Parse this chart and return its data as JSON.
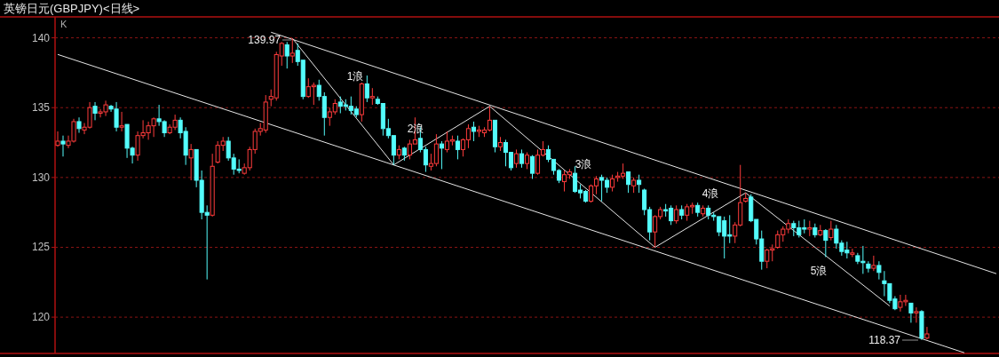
{
  "chart_data": {
    "type": "candlestick",
    "title": "英镑日元(GBPJPY)<日线>",
    "categories": [
      null,
      null,
      null,
      null,
      null,
      null,
      null,
      null,
      null,
      null,
      null,
      null,
      null,
      null,
      null,
      null,
      null,
      null,
      null,
      null,
      null,
      null,
      null,
      null,
      null,
      null,
      null,
      null,
      null,
      null,
      null,
      null,
      null,
      null,
      null,
      null,
      null,
      null,
      null,
      null,
      null,
      null,
      null,
      null,
      null,
      null,
      null,
      null,
      null,
      null,
      null,
      null,
      null,
      null,
      null,
      null,
      null,
      null,
      null,
      null,
      null,
      null,
      null,
      null,
      null,
      null,
      null,
      null,
      null,
      null,
      null,
      null,
      null,
      null,
      null,
      null,
      null,
      null,
      null,
      null,
      null,
      null,
      null,
      null,
      null,
      null,
      null,
      null,
      null,
      null,
      null,
      null,
      null,
      null,
      null,
      null,
      null,
      null,
      null,
      null,
      null,
      null,
      null,
      null,
      null,
      null,
      null,
      null,
      null,
      null,
      null,
      null,
      null,
      null,
      null,
      null,
      null,
      null,
      null,
      null,
      null,
      null,
      null,
      null,
      null,
      null,
      null,
      null,
      null,
      null,
      null,
      null,
      null,
      null,
      null,
      null,
      null,
      null,
      null,
      null,
      null,
      null,
      null,
      null,
      null,
      null,
      null,
      null,
      null,
      null,
      null,
      null,
      null,
      null,
      null,
      null,
      null,
      null,
      null,
      null,
      null,
      null,
      null,
      null,
      null,
      null,
      null,
      null,
      null,
      null,
      null,
      null,
      null,
      null,
      null,
      null,
      null
    ],
    "ohlc": [
      [
        132.3,
        133.3,
        132.2,
        132.6
      ],
      [
        132.6,
        133.0,
        131.5,
        132.4
      ],
      [
        132.3,
        133.0,
        132.1,
        132.6
      ],
      [
        132.6,
        134.2,
        132.5,
        134.0
      ],
      [
        134.0,
        134.3,
        133.2,
        133.5
      ],
      [
        133.4,
        133.9,
        133.1,
        133.6
      ],
      [
        133.6,
        135.4,
        133.5,
        135.0
      ],
      [
        135.1,
        135.4,
        134.1,
        134.6
      ],
      [
        134.6,
        134.9,
        134.3,
        134.7
      ],
      [
        134.7,
        135.5,
        134.4,
        135.2
      ],
      [
        135.1,
        135.2,
        134.7,
        134.9
      ],
      [
        134.9,
        135.4,
        133.3,
        133.6
      ],
      [
        133.6,
        134.7,
        133.3,
        133.7
      ],
      [
        133.8,
        133.8,
        131.4,
        132.1
      ],
      [
        132.1,
        132.2,
        131.0,
        131.6
      ],
      [
        131.6,
        133.3,
        131.2,
        133.0
      ],
      [
        133.0,
        134.1,
        132.8,
        133.2
      ],
      [
        133.2,
        134.0,
        132.7,
        133.7
      ],
      [
        133.7,
        134.3,
        132.9,
        134.2
      ],
      [
        134.2,
        135.2,
        133.7,
        134.0
      ],
      [
        134.0,
        134.1,
        132.9,
        133.2
      ],
      [
        133.2,
        133.8,
        133.1,
        133.6
      ],
      [
        133.6,
        134.5,
        133.4,
        134.1
      ],
      [
        134.1,
        134.3,
        132.8,
        133.2
      ],
      [
        133.3,
        133.6,
        130.9,
        131.6
      ],
      [
        131.4,
        132.4,
        129.8,
        132.0
      ],
      [
        132.0,
        132.0,
        129.3,
        129.8
      ],
      [
        129.8,
        130.5,
        127.0,
        127.5
      ],
      [
        127.5,
        128.0,
        122.7,
        127.3
      ],
      [
        127.3,
        131.7,
        127.2,
        130.8
      ],
      [
        131.1,
        132.6,
        131.0,
        132.3
      ],
      [
        132.3,
        132.9,
        131.9,
        132.6
      ],
      [
        132.6,
        132.9,
        131.2,
        131.4
      ],
      [
        131.4,
        131.7,
        130.2,
        130.6
      ],
      [
        130.6,
        131.3,
        130.3,
        130.5
      ],
      [
        130.3,
        131.0,
        130.2,
        130.7
      ],
      [
        130.7,
        132.2,
        130.5,
        132.0
      ],
      [
        132.0,
        133.5,
        131.7,
        133.3
      ],
      [
        133.3,
        133.9,
        133.0,
        133.5
      ],
      [
        133.4,
        135.9,
        133.2,
        135.4
      ],
      [
        135.6,
        136.3,
        135.1,
        135.8
      ],
      [
        135.7,
        139.0,
        135.5,
        138.8
      ],
      [
        138.7,
        139.7,
        138.0,
        139.6
      ],
      [
        139.5,
        139.7,
        137.8,
        138.7
      ],
      [
        138.7,
        139.97,
        138.2,
        138.9
      ],
      [
        139.1,
        139.6,
        138.0,
        138.3
      ],
      [
        138.4,
        138.4,
        135.6,
        135.8
      ],
      [
        135.8,
        137.1,
        135.7,
        136.5
      ],
      [
        136.5,
        136.8,
        135.2,
        136.6
      ],
      [
        136.6,
        137.0,
        135.5,
        135.8
      ],
      [
        135.8,
        136.1,
        133.0,
        134.3
      ],
      [
        134.3,
        135.0,
        133.7,
        134.7
      ],
      [
        134.7,
        135.6,
        134.5,
        135.3
      ],
      [
        135.4,
        135.8,
        134.6,
        135.1
      ],
      [
        135.2,
        135.6,
        134.8,
        135.1
      ],
      [
        135.1,
        135.8,
        134.5,
        134.8
      ],
      [
        134.9,
        135.1,
        134.3,
        134.5
      ],
      [
        134.5,
        136.8,
        134.0,
        136.7
      ],
      [
        136.7,
        137.3,
        135.4,
        135.7
      ],
      [
        135.7,
        136.4,
        135.2,
        135.8
      ],
      [
        135.6,
        135.8,
        135.2,
        135.3
      ],
      [
        135.3,
        135.3,
        133.0,
        133.5
      ],
      [
        133.5,
        134.2,
        132.8,
        133.0
      ],
      [
        133.0,
        133.0,
        130.9,
        131.6
      ],
      [
        131.6,
        132.3,
        131.3,
        132.0
      ],
      [
        132.1,
        132.2,
        131.2,
        131.6
      ],
      [
        131.6,
        132.7,
        131.3,
        132.4
      ],
      [
        132.4,
        134.3,
        132.4,
        132.7
      ],
      [
        132.8,
        133.6,
        131.8,
        132.0
      ],
      [
        132.0,
        132.2,
        130.4,
        130.9
      ],
      [
        130.8,
        131.7,
        130.5,
        131.0
      ],
      [
        131.0,
        133.1,
        130.8,
        132.4
      ],
      [
        132.4,
        132.6,
        130.6,
        132.1
      ],
      [
        132.0,
        133.3,
        131.8,
        132.6
      ],
      [
        132.6,
        133.0,
        132.3,
        132.7
      ],
      [
        132.6,
        133.0,
        131.3,
        132.0
      ],
      [
        132.0,
        132.8,
        131.5,
        132.7
      ],
      [
        132.7,
        133.8,
        132.1,
        133.5
      ],
      [
        133.6,
        134.0,
        132.6,
        133.3
      ],
      [
        133.3,
        133.7,
        132.9,
        133.4
      ],
      [
        133.2,
        133.6,
        132.9,
        133.4
      ],
      [
        133.4,
        135.1,
        133.3,
        134.1
      ],
      [
        134.1,
        134.1,
        131.8,
        132.2
      ],
      [
        132.2,
        132.9,
        131.9,
        132.5
      ],
      [
        132.5,
        132.7,
        130.8,
        131.8
      ],
      [
        131.8,
        131.8,
        130.5,
        130.7
      ],
      [
        131.0,
        132.0,
        130.7,
        131.7
      ],
      [
        131.7,
        132.0,
        130.7,
        131.0
      ],
      [
        131.0,
        131.8,
        130.6,
        131.6
      ],
      [
        131.5,
        131.6,
        129.9,
        130.3
      ],
      [
        130.3,
        132.0,
        130.2,
        131.6
      ],
      [
        131.6,
        132.6,
        131.5,
        132.0
      ],
      [
        132.0,
        132.3,
        131.1,
        131.3
      ],
      [
        131.3,
        131.3,
        130.2,
        130.5
      ],
      [
        130.5,
        130.6,
        129.6,
        129.8
      ],
      [
        129.7,
        130.5,
        129.0,
        130.2
      ],
      [
        130.2,
        130.6,
        129.9,
        130.4
      ],
      [
        130.3,
        130.8,
        128.9,
        129.0
      ],
      [
        129.1,
        129.5,
        128.5,
        128.9
      ],
      [
        129.0,
        129.1,
        128.2,
        128.3
      ],
      [
        128.3,
        129.5,
        128.2,
        129.4
      ],
      [
        129.4,
        130.1,
        128.8,
        129.9
      ],
      [
        130.0,
        130.2,
        128.3,
        129.8
      ],
      [
        129.8,
        130.0,
        128.9,
        129.3
      ],
      [
        129.3,
        130.2,
        129.0,
        129.9
      ],
      [
        130.0,
        130.4,
        129.7,
        130.1
      ],
      [
        130.1,
        131.0,
        129.9,
        130.3
      ],
      [
        130.4,
        130.4,
        128.9,
        129.5
      ],
      [
        129.4,
        130.0,
        128.9,
        129.8
      ],
      [
        129.8,
        130.2,
        128.9,
        129.5
      ],
      [
        129.1,
        129.2,
        127.3,
        127.7
      ],
      [
        127.7,
        127.9,
        125.5,
        126.1
      ],
      [
        126.1,
        127.3,
        125.0,
        127.2
      ],
      [
        127.2,
        127.9,
        127.0,
        127.7
      ],
      [
        127.7,
        128.1,
        127.2,
        127.6
      ],
      [
        127.8,
        128.0,
        126.6,
        126.9
      ],
      [
        126.9,
        128.0,
        126.7,
        127.7
      ],
      [
        127.7,
        128.0,
        127.0,
        127.3
      ],
      [
        127.3,
        128.1,
        126.9,
        127.9
      ],
      [
        127.9,
        128.2,
        127.4,
        128.0
      ],
      [
        128.0,
        128.2,
        127.2,
        127.5
      ],
      [
        127.4,
        128.0,
        127.2,
        127.8
      ],
      [
        127.8,
        128.0,
        127.0,
        127.3
      ],
      [
        127.3,
        127.5,
        126.9,
        127.2
      ],
      [
        127.2,
        127.2,
        125.8,
        126.1
      ],
      [
        126.9,
        127.2,
        124.2,
        125.8
      ],
      [
        125.9,
        127.3,
        125.3,
        125.8
      ],
      [
        125.8,
        126.8,
        125.3,
        126.6
      ],
      [
        126.6,
        130.9,
        126.5,
        128.2
      ],
      [
        128.3,
        128.9,
        128.2,
        128.5
      ],
      [
        128.6,
        128.8,
        126.8,
        126.9
      ],
      [
        127.0,
        127.0,
        125.2,
        125.6
      ],
      [
        125.6,
        126.2,
        123.4,
        124.0
      ],
      [
        124.0,
        124.9,
        123.5,
        124.8
      ],
      [
        124.8,
        125.2,
        124.0,
        124.9
      ],
      [
        125.0,
        126.2,
        124.9,
        125.9
      ],
      [
        125.9,
        126.5,
        125.4,
        126.3
      ],
      [
        126.3,
        127.0,
        126.0,
        126.7
      ],
      [
        126.7,
        126.9,
        125.8,
        126.4
      ],
      [
        126.4,
        126.9,
        125.7,
        125.9
      ],
      [
        126.4,
        127.0,
        126.0,
        126.3
      ],
      [
        126.3,
        126.9,
        125.8,
        126.4
      ],
      [
        126.4,
        126.7,
        125.7,
        125.9
      ],
      [
        125.9,
        126.6,
        125.8,
        126.2
      ],
      [
        126.2,
        126.3,
        124.3,
        125.5
      ],
      [
        125.7,
        126.9,
        125.5,
        126.3
      ],
      [
        126.3,
        126.6,
        124.9,
        125.3
      ],
      [
        125.3,
        125.5,
        124.4,
        124.7
      ],
      [
        124.8,
        125.4,
        124.2,
        124.6
      ],
      [
        124.5,
        124.9,
        124.3,
        124.6
      ],
      [
        124.4,
        124.6,
        123.8,
        124.0
      ],
      [
        124.0,
        125.1,
        123.1,
        123.9
      ],
      [
        123.8,
        124.0,
        123.2,
        123.5
      ],
      [
        123.5,
        124.4,
        123.3,
        123.7
      ],
      [
        123.7,
        124.0,
        122.7,
        123.2
      ],
      [
        122.6,
        123.3,
        121.5,
        122.4
      ],
      [
        122.4,
        122.4,
        121.0,
        121.2
      ],
      [
        121.3,
        121.5,
        120.5,
        120.6
      ],
      [
        120.7,
        121.6,
        120.4,
        121.1
      ],
      [
        121.1,
        121.6,
        120.8,
        121.2
      ],
      [
        121.0,
        121.0,
        119.6,
        120.3
      ],
      [
        120.3,
        120.7,
        119.6,
        120.4
      ],
      [
        120.4,
        120.5,
        118.37,
        118.5
      ],
      [
        118.5,
        119.3,
        118.4,
        118.8
      ],
      null,
      null,
      null,
      null,
      null,
      null,
      null,
      null,
      null,
      null,
      null,
      null,
      null
    ],
    "colors": [
      "#ff3c3c",
      "#54fcfc",
      "#ff3c3c",
      "#ff3c3c",
      "#54fcfc",
      "#ff3c3c",
      "#ff3c3c",
      "#54fcfc",
      "#ff3c3c",
      "#ff3c3c",
      "#54fcfc",
      "#54fcfc",
      "#ff3c3c",
      "#54fcfc",
      "#54fcfc",
      "#ff3c3c",
      "#ff3c3c",
      "#ff3c3c",
      "#ff3c3c",
      "#54fcfc",
      "#54fcfc",
      "#ff3c3c",
      "#ff3c3c",
      "#54fcfc",
      "#54fcfc",
      "#ff3c3c",
      "#54fcfc",
      "#54fcfc",
      "#54fcfc",
      "#ff3c3c",
      "#ff3c3c",
      "#ff3c3c",
      "#54fcfc",
      "#54fcfc",
      "#54fcfc",
      "#ff3c3c",
      "#ff3c3c",
      "#ff3c3c",
      "#ff3c3c",
      "#ff3c3c",
      "#ff3c3c",
      "#ff3c3c",
      "#ff3c3c",
      "#54fcfc",
      "#ff3c3c",
      "#54fcfc",
      "#54fcfc",
      "#ff3c3c",
      "#ff3c3c",
      "#54fcfc",
      "#54fcfc",
      "#ff3c3c",
      "#ff3c3c",
      "#54fcfc",
      "#54fcfc",
      "#54fcfc",
      "#54fcfc",
      "#ff3c3c",
      "#54fcfc",
      "#ff3c3c",
      "#54fcfc",
      "#54fcfc",
      "#54fcfc",
      "#54fcfc",
      "#ff3c3c",
      "#54fcfc",
      "#ff3c3c",
      "#ff3c3c",
      "#54fcfc",
      "#54fcfc",
      "#ff3c3c",
      "#ff3c3c",
      "#54fcfc",
      "#ff3c3c",
      "#ff3c3c",
      "#54fcfc",
      "#ff3c3c",
      "#ff3c3c",
      "#54fcfc",
      "#ff3c3c",
      "#ff3c3c",
      "#ff3c3c",
      "#54fcfc",
      "#ff3c3c",
      "#54fcfc",
      "#54fcfc",
      "#ff3c3c",
      "#54fcfc",
      "#ff3c3c",
      "#54fcfc",
      "#ff3c3c",
      "#ff3c3c",
      "#54fcfc",
      "#54fcfc",
      "#54fcfc",
      "#ff3c3c",
      "#ff3c3c",
      "#54fcfc",
      "#54fcfc",
      "#54fcfc",
      "#ff3c3c",
      "#ff3c3c",
      "#54fcfc",
      "#54fcfc",
      "#ff3c3c",
      "#ff3c3c",
      "#ff3c3c",
      "#54fcfc",
      "#ff3c3c",
      "#54fcfc",
      "#54fcfc",
      "#54fcfc",
      "#ff3c3c",
      "#ff3c3c",
      "#54fcfc",
      "#54fcfc",
      "#ff3c3c",
      "#54fcfc",
      "#ff3c3c",
      "#ff3c3c",
      "#54fcfc",
      "#ff3c3c",
      "#54fcfc",
      "#54fcfc",
      "#54fcfc",
      "#54fcfc",
      "#54fcfc",
      "#ff3c3c",
      "#ff3c3c",
      "#ff3c3c",
      "#54fcfc",
      "#54fcfc",
      "#54fcfc",
      "#ff3c3c",
      "#ff3c3c",
      "#ff3c3c",
      "#ff3c3c",
      "#ff3c3c",
      "#54fcfc",
      "#54fcfc",
      "#54fcfc",
      "#ff3c3c",
      "#54fcfc",
      "#ff3c3c",
      "#54fcfc",
      "#ff3c3c",
      "#54fcfc",
      "#54fcfc",
      "#54fcfc",
      "#ff3c3c",
      "#54fcfc",
      "#54fcfc",
      "#54fcfc",
      "#ff3c3c",
      "#54fcfc",
      "#54fcfc",
      "#54fcfc",
      "#54fcfc",
      "#ff3c3c",
      "#ff3c3c",
      "#54fcfc",
      "#ff3c3c",
      "#54fcfc",
      "#ff3c3c",
      null,
      null,
      null,
      null,
      null,
      null,
      null,
      null,
      null,
      null,
      null,
      null,
      null
    ],
    "series": [
      {
        "type": "line",
        "color": "#e6e6e6",
        "values": [
          null,
          null,
          null,
          null,
          null,
          null,
          null,
          null,
          null,
          null,
          null,
          null,
          null,
          null,
          null,
          null,
          null,
          null,
          null,
          null,
          null,
          null,
          null,
          null,
          null,
          null,
          null,
          null,
          null,
          null,
          null,
          null,
          null,
          null,
          null,
          null,
          null,
          null,
          null,
          null,
          140.4,
          null,
          null,
          null,
          null,
          null,
          null,
          null,
          null,
          null,
          null,
          null,
          null,
          null,
          null,
          null,
          null,
          null,
          null,
          null,
          null,
          null,
          null,
          null,
          null,
          null,
          null,
          null,
          null,
          null,
          null,
          null,
          null,
          null,
          null,
          null,
          null,
          null,
          null,
          null,
          null,
          null,
          null,
          null,
          null,
          null,
          null,
          null,
          null,
          null,
          null,
          null,
          null,
          null,
          null,
          null,
          null,
          null,
          null,
          null,
          null,
          null,
          null,
          null,
          null,
          null,
          null,
          null,
          null,
          null,
          null,
          null,
          null,
          null,
          null,
          null,
          null,
          null,
          null,
          null,
          null,
          null,
          null,
          null,
          null,
          null,
          null,
          null,
          null,
          null,
          null,
          null,
          null,
          null,
          null,
          null,
          null,
          null,
          null,
          null,
          null,
          null,
          null,
          null,
          null,
          null,
          null,
          null,
          null,
          null,
          null,
          null,
          null,
          null,
          null,
          null,
          null,
          null,
          null,
          null,
          null,
          null,
          null,
          null,
          null,
          null,
          null,
          null,
          null,
          null,
          null,
          null,
          null,
          null,
          null,
          null,
          123.11
        ]
      },
      {
        "type": "line",
        "color": "#e6e6e6",
        "values": [
          138.81,
          null,
          null,
          null,
          null,
          null,
          null,
          null,
          null,
          null,
          null,
          null,
          null,
          null,
          null,
          null,
          null,
          null,
          null,
          null,
          null,
          null,
          null,
          null,
          null,
          null,
          null,
          null,
          null,
          null,
          null,
          null,
          null,
          null,
          null,
          null,
          null,
          null,
          null,
          null,
          null,
          null,
          null,
          null,
          null,
          null,
          null,
          null,
          null,
          null,
          null,
          null,
          null,
          null,
          null,
          null,
          null,
          null,
          null,
          null,
          null,
          null,
          null,
          null,
          null,
          null,
          null,
          null,
          null,
          null,
          null,
          null,
          null,
          null,
          null,
          null,
          null,
          null,
          null,
          null,
          null,
          null,
          null,
          null,
          null,
          null,
          null,
          null,
          null,
          null,
          null,
          null,
          null,
          null,
          null,
          null,
          null,
          null,
          null,
          null,
          null,
          null,
          null,
          null,
          null,
          null,
          null,
          null,
          null,
          null,
          null,
          null,
          null,
          null,
          null,
          null,
          null,
          null,
          null,
          null,
          null,
          null,
          null,
          null,
          null,
          null,
          null,
          null,
          null,
          null,
          null,
          null,
          null,
          null,
          null,
          null,
          null,
          null,
          null,
          null,
          null,
          null,
          null,
          null,
          null,
          null,
          null,
          null,
          null,
          null,
          null,
          null,
          null,
          null,
          null,
          null,
          null,
          null,
          null,
          null,
          null,
          null,
          null,
          null,
          null,
          null,
          null,
          null,
          null,
          null,
          117.45,
          null,
          null,
          null,
          null,
          null,
          null
        ]
      },
      {
        "type": "line",
        "color": "#e6e6e6",
        "values": [
          null,
          null,
          null,
          null,
          null,
          null,
          null,
          null,
          null,
          null,
          null,
          null,
          null,
          null,
          null,
          null,
          null,
          null,
          null,
          null,
          null,
          null,
          null,
          null,
          null,
          null,
          null,
          null,
          null,
          null,
          null,
          null,
          null,
          null,
          null,
          null,
          null,
          null,
          null,
          null,
          null,
          null,
          null,
          null,
          139.97,
          null,
          null,
          null,
          null,
          null,
          null,
          null,
          null,
          null,
          null,
          null,
          null,
          null,
          null,
          null,
          null,
          null,
          null,
          130.9,
          null,
          null,
          null,
          null,
          null,
          null,
          null,
          null,
          null,
          null,
          null,
          null,
          null,
          null,
          null,
          null,
          null,
          135.1,
          null,
          null,
          null,
          null,
          null,
          null,
          null,
          null,
          null,
          null,
          null,
          null,
          null,
          null,
          null,
          null,
          null,
          null,
          null,
          null,
          null,
          null,
          null,
          null,
          null,
          null,
          null,
          null,
          null,
          null,
          125.0,
          null,
          null,
          null,
          null,
          null,
          null,
          null,
          null,
          null,
          null,
          null,
          null,
          null,
          null,
          null,
          null,
          128.9,
          null,
          null,
          null,
          null,
          null,
          null,
          null,
          null,
          null,
          null,
          null,
          null,
          null,
          null,
          null,
          null,
          null,
          null,
          null,
          null,
          null,
          null,
          null,
          null,
          null,
          null,
          120.8,
          null,
          null,
          null,
          null,
          null,
          null,
          null,
          null,
          null,
          null,
          null,
          null,
          null,
          null,
          null,
          null,
          null,
          null,
          null,
          null
        ]
      }
    ],
    "ylim": [
      117.4,
      141.5
    ],
    "yticks": [
      120,
      125,
      130,
      135,
      140
    ],
    "grid": "y",
    "tick_labels": "y",
    "line_style": "solid",
    "annotations": [
      "K",
      "139.97",
      "118.37",
      "1浪",
      "2浪",
      "3浪",
      "4浪",
      "5浪"
    ]
  }
}
